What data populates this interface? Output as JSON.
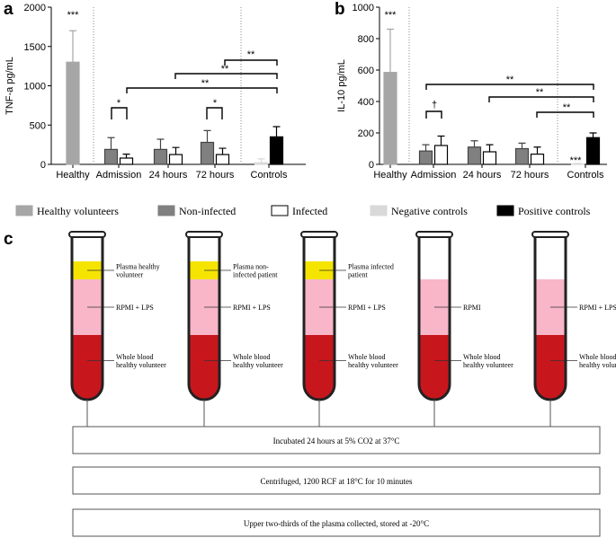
{
  "chart_data": [
    {
      "type": "bar",
      "panel": "a",
      "y_label": "TNF-a pg/mL",
      "categories": [
        "Healthy",
        "Admission",
        "24 hours",
        "72 hours",
        "Controls"
      ],
      "ylim": [
        0,
        2000
      ],
      "yticks": [
        0,
        500,
        1000,
        1500,
        2000
      ],
      "series": [
        {
          "name": "Healthy volunteers",
          "color": "#a6a6a6",
          "values": [
            1300,
            null,
            null,
            null,
            null
          ],
          "errors": [
            400,
            null,
            null,
            null,
            null
          ]
        },
        {
          "name": "Non-infected",
          "color": "#808080",
          "values": [
            null,
            190,
            190,
            280,
            null
          ],
          "errors": [
            null,
            150,
            130,
            150,
            null
          ]
        },
        {
          "name": "Infected",
          "color": "#ffffff",
          "values": [
            null,
            80,
            125,
            125,
            null
          ],
          "errors": [
            null,
            50,
            90,
            80,
            null
          ]
        },
        {
          "name": "Negative controls",
          "color": "#d9d9d9",
          "values": [
            null,
            null,
            null,
            null,
            20
          ],
          "errors": [
            null,
            null,
            null,
            null,
            50
          ]
        },
        {
          "name": "Positive controls",
          "color": "#000000",
          "values": [
            null,
            null,
            null,
            null,
            350
          ],
          "errors": [
            null,
            null,
            null,
            null,
            130
          ]
        }
      ],
      "annotations": [
        "***",
        "*",
        "*",
        "**",
        "**",
        "**"
      ]
    },
    {
      "type": "bar",
      "panel": "b",
      "y_label": "IL-10 pg/mL",
      "categories": [
        "Healthy",
        "Admission",
        "24 hours",
        "72 hours",
        "Controls"
      ],
      "ylim": [
        0,
        1000
      ],
      "yticks": [
        0,
        200,
        400,
        600,
        800,
        1000
      ],
      "series": [
        {
          "color": "#a6a6a6",
          "values": [
            585,
            null,
            null,
            null,
            null
          ],
          "errors": [
            275,
            null,
            null,
            null,
            null
          ]
        },
        {
          "color": "#808080",
          "values": [
            null,
            85,
            110,
            100,
            null
          ],
          "errors": [
            null,
            40,
            40,
            35,
            null
          ]
        },
        {
          "color": "#ffffff",
          "values": [
            null,
            120,
            80,
            65,
            null
          ],
          "errors": [
            null,
            60,
            45,
            45,
            null
          ]
        },
        {
          "color": "#d9d9d9",
          "values": [
            null,
            null,
            null,
            null,
            2
          ],
          "errors": [
            null,
            null,
            null,
            null,
            4
          ]
        },
        {
          "color": "#000000",
          "values": [
            null,
            null,
            null,
            null,
            170
          ],
          "errors": [
            null,
            null,
            null,
            null,
            30
          ]
        }
      ],
      "annotations": [
        "***",
        "†",
        "**",
        "**",
        "**",
        "***"
      ]
    }
  ],
  "panel_c": {
    "label": "c",
    "tubes": [
      {
        "layers": [
          {
            "color": "#f5e400",
            "text": [
              "Plasma healthy",
              "volunteer"
            ]
          },
          {
            "color": "#f8b6c8",
            "text": [
              "RPMI + LPS"
            ]
          },
          {
            "color": "#c8161d",
            "text": [
              "Whole blood",
              "healthy volunteer"
            ]
          }
        ]
      },
      {
        "layers": [
          {
            "color": "#f5e400",
            "text": [
              "Plasma non-",
              "infected patient"
            ]
          },
          {
            "color": "#f8b6c8",
            "text": [
              "RPMI + LPS"
            ]
          },
          {
            "color": "#c8161d",
            "text": [
              "Whole blood",
              "healthy volunteer"
            ]
          }
        ]
      },
      {
        "layers": [
          {
            "color": "#f5e400",
            "text": [
              "Plasma infected",
              "patient"
            ]
          },
          {
            "color": "#f8b6c8",
            "text": [
              "RPMI + LPS"
            ]
          },
          {
            "color": "#c8161d",
            "text": [
              "Whole blood",
              "healthy volunteer"
            ]
          }
        ]
      },
      {
        "layers": [
          {
            "color": "#f8b6c8",
            "text": [
              "RPMI"
            ]
          },
          {
            "color": "#c8161d",
            "text": [
              "Whole blood",
              "healthy volunteer"
            ]
          }
        ]
      },
      {
        "layers": [
          {
            "color": "#f8b6c8",
            "text": [
              "RPMI + LPS"
            ]
          },
          {
            "color": "#c8161d",
            "text": [
              "Whole blood",
              "healthy volunteer"
            ]
          }
        ]
      }
    ],
    "steps": [
      "Incubated 24 hours at 5% CO2 at 37°C",
      "Centrifuged, 1200 RCF at 18°C for 10 minutes",
      "Upper two-thirds of the plasma collected, stored at -20°C"
    ]
  }
}
